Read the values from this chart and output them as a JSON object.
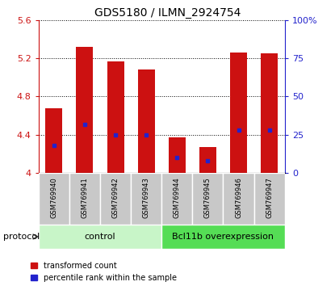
{
  "title": "GDS5180 / ILMN_2924754",
  "samples": [
    "GSM769940",
    "GSM769941",
    "GSM769942",
    "GSM769943",
    "GSM769944",
    "GSM769945",
    "GSM769946",
    "GSM769947"
  ],
  "transformed_count": [
    4.68,
    5.32,
    5.17,
    5.08,
    4.37,
    4.27,
    5.26,
    5.25
  ],
  "percentile_rank": [
    18,
    32,
    25,
    25,
    10,
    8,
    28,
    28
  ],
  "bar_bottom": 4.0,
  "ylim_left": [
    4.0,
    5.6
  ],
  "ylim_right": [
    0,
    100
  ],
  "yticks_left": [
    4.0,
    4.4,
    4.8,
    5.2,
    5.6
  ],
  "ytick_labels_left": [
    "4",
    "4.4",
    "4.8",
    "5.2",
    "5.6"
  ],
  "yticks_right": [
    0,
    25,
    50,
    75,
    100
  ],
  "ytick_labels_right": [
    "0",
    "25",
    "50",
    "75",
    "100%"
  ],
  "groups": [
    {
      "label": "control",
      "start": 0,
      "end": 4,
      "color": "#c8f5c8"
    },
    {
      "label": "Bcl11b overexpression",
      "start": 4,
      "end": 8,
      "color": "#55dd55"
    }
  ],
  "bar_color": "#cc1111",
  "percentile_color": "#2222cc",
  "bar_width": 0.55,
  "background_xticklabel": "#c8c8c8",
  "protocol_label": "protocol",
  "legend_items": [
    "transformed count",
    "percentile rank within the sample"
  ],
  "tick_color_left": "#cc1111",
  "tick_color_right": "#2222cc"
}
